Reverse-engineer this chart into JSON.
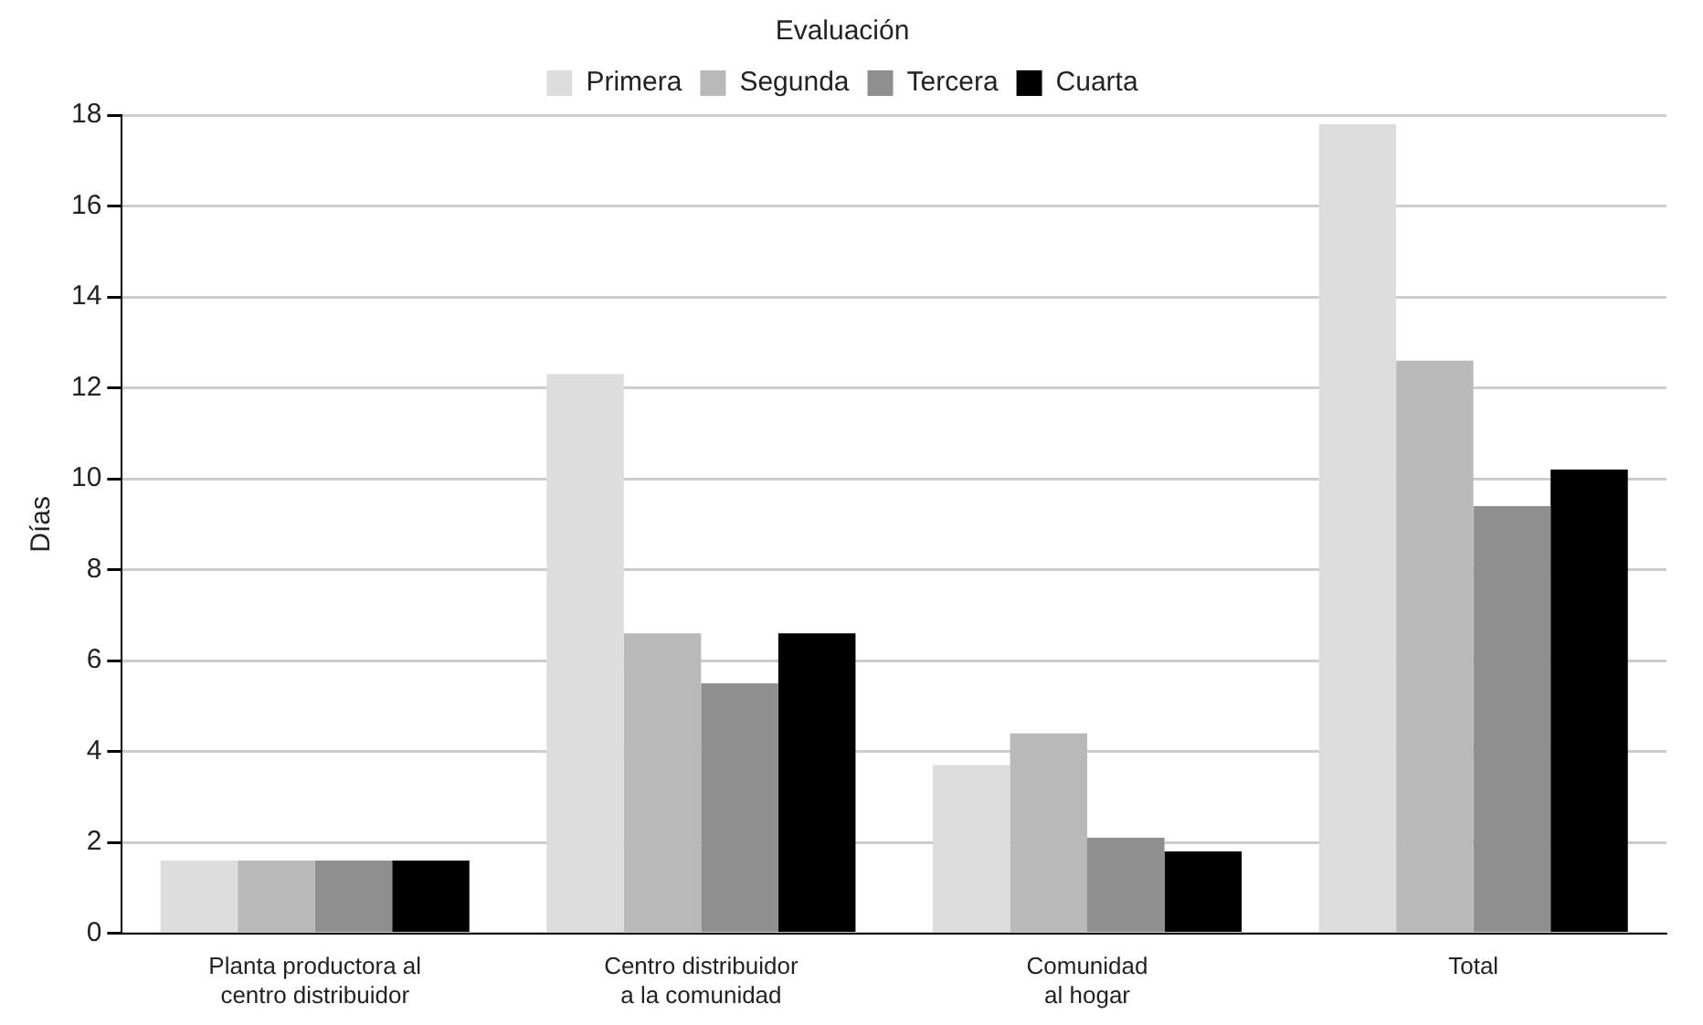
{
  "chart_data": {
    "type": "bar",
    "ylabel": "Días",
    "legend_title": "Evaluación",
    "categories": [
      "Planta productora al\ncentro distribuidor",
      "Centro distribuidor\na la comunidad",
      "Comunidad\nal hogar",
      "Total"
    ],
    "series": [
      {
        "name": "Primera",
        "color": "#dddddd",
        "values": [
          1.6,
          12.3,
          3.7,
          17.8
        ]
      },
      {
        "name": "Segunda",
        "color": "#b9b9b9",
        "values": [
          1.6,
          6.6,
          4.4,
          12.6
        ]
      },
      {
        "name": "Tercera",
        "color": "#8f8f8f",
        "values": [
          1.6,
          5.5,
          2.1,
          9.4
        ]
      },
      {
        "name": "Cuarta",
        "color": "#000000",
        "values": [
          1.6,
          6.6,
          1.8,
          10.2
        ]
      }
    ],
    "ylim": [
      0,
      18
    ],
    "yticks": [
      0,
      2,
      4,
      6,
      8,
      10,
      12,
      14,
      16,
      18
    ],
    "grid": "y",
    "legend": "top"
  }
}
